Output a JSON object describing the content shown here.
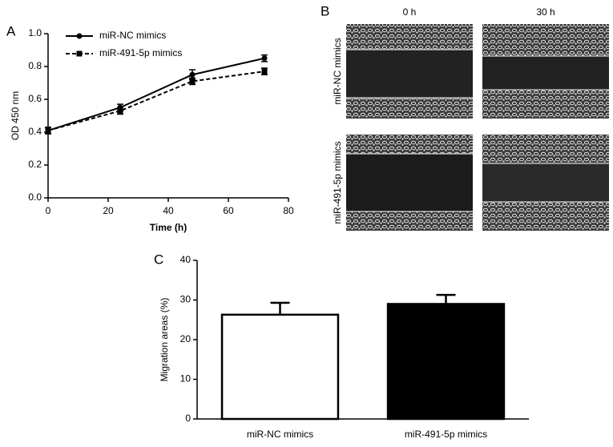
{
  "panel_labels": [
    "A",
    "B",
    "C"
  ],
  "panel_b": {
    "columns": [
      "0 h",
      "30 h"
    ],
    "rows": [
      "miR-NC mimics",
      "miR-491-5p mimics"
    ]
  },
  "chart_data": [
    {
      "type": "line",
      "xlabel": "Time (h)",
      "ylabel": "OD 450 nm",
      "x": [
        0,
        24,
        48,
        72
      ],
      "series": [
        {
          "name": "miR-NC mimics",
          "color": "#000000",
          "marker": "circle",
          "line_style": "solid",
          "values": [
            0.41,
            0.55,
            0.75,
            0.85
          ],
          "errors": [
            0.02,
            0.02,
            0.03,
            0.02
          ]
        },
        {
          "name": "miR-491-5p mimics",
          "color": "#000000",
          "marker": "square",
          "line_style": "dashed",
          "values": [
            0.41,
            0.53,
            0.71,
            0.77
          ],
          "errors": [
            0.02,
            0.02,
            0.02,
            0.02
          ]
        }
      ],
      "xlim": [
        0,
        80
      ],
      "xticks": [
        0,
        20,
        40,
        60,
        80
      ],
      "ylim": [
        0,
        1
      ],
      "yticks": [
        {
          "value": 0,
          "label": "0.0"
        },
        0.2,
        0.4,
        0.6,
        0.8,
        {
          "value": 1,
          "label": "1.0"
        }
      ],
      "legend": "upper left"
    },
    {
      "type": "bar",
      "ylabel": "Migration areas (%)",
      "categories": [
        "miR-NC mimics",
        "miR-491-5p mimics"
      ],
      "values": [
        26.3,
        29.0
      ],
      "errors": [
        3.0,
        2.3
      ],
      "colors": [
        "#ffffff",
        "#000000"
      ],
      "edge_color": "#000000",
      "ylim": [
        0,
        40
      ],
      "yticks": [
        0,
        10,
        20,
        30,
        40
      ]
    }
  ]
}
